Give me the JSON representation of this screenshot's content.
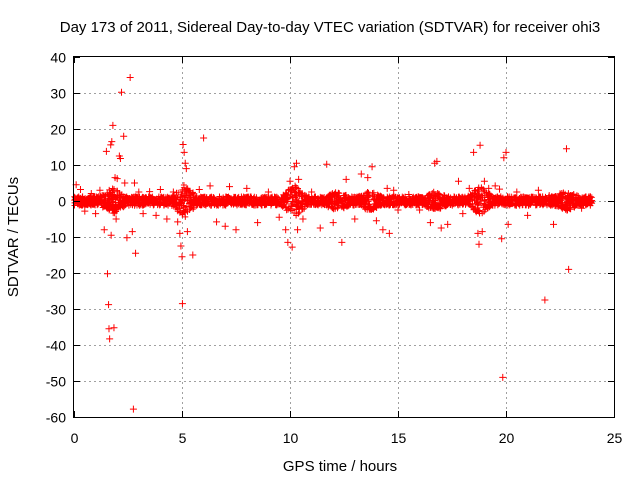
{
  "chart_data": {
    "type": "scatter",
    "title": "Day 173 of 2011, Sidereal Day-to-day VTEC variation (SDTVAR) for receiver ohi3",
    "xlabel": "GPS time / hours",
    "ylabel": "SDTVAR / TECUs",
    "xlim": [
      0,
      25
    ],
    "ylim": [
      -60,
      40
    ],
    "xticks": [
      0,
      5,
      10,
      15,
      20,
      25
    ],
    "yticks": [
      -60,
      -50,
      -40,
      -30,
      -20,
      -10,
      0,
      10,
      20,
      30,
      40
    ],
    "grid": true,
    "marker": "+",
    "color": "#ff0000",
    "series": [
      {
        "name": "SDTVAR",
        "points": [
          [
            0.1,
            4.5
          ],
          [
            0.3,
            3.2
          ],
          [
            0.5,
            -2.8
          ],
          [
            0.8,
            2.1
          ],
          [
            1.0,
            -3.5
          ],
          [
            1.2,
            3.0
          ],
          [
            1.4,
            -8.0
          ],
          [
            1.5,
            13.8
          ],
          [
            1.55,
            -20.2
          ],
          [
            1.6,
            -28.8
          ],
          [
            1.62,
            -35.5
          ],
          [
            1.65,
            -38.3
          ],
          [
            1.7,
            15.6
          ],
          [
            1.72,
            -9.5
          ],
          [
            1.75,
            16.5
          ],
          [
            1.8,
            21.0
          ],
          [
            1.85,
            -35.2
          ],
          [
            1.9,
            6.5
          ],
          [
            1.95,
            -5.0
          ],
          [
            2.0,
            6.2
          ],
          [
            2.1,
            12.5
          ],
          [
            2.15,
            11.8
          ],
          [
            2.2,
            30.2
          ],
          [
            2.3,
            18.0
          ],
          [
            2.35,
            5.0
          ],
          [
            2.45,
            -10.2
          ],
          [
            2.6,
            34.3
          ],
          [
            2.7,
            -8.5
          ],
          [
            2.75,
            -57.8
          ],
          [
            2.8,
            5.0
          ],
          [
            2.85,
            -14.5
          ],
          [
            3.0,
            2.5
          ],
          [
            3.2,
            -3.5
          ],
          [
            3.5,
            2.6
          ],
          [
            3.8,
            -4.0
          ],
          [
            4.0,
            3.2
          ],
          [
            4.3,
            -5.0
          ],
          [
            4.6,
            2.5
          ],
          [
            4.8,
            -5.8
          ],
          [
            4.9,
            -9.0
          ],
          [
            4.95,
            -12.5
          ],
          [
            5.0,
            -15.5
          ],
          [
            5.02,
            -28.5
          ],
          [
            5.05,
            15.7
          ],
          [
            5.1,
            13.5
          ],
          [
            5.15,
            10.5
          ],
          [
            5.2,
            9.0
          ],
          [
            5.25,
            -8.5
          ],
          [
            5.5,
            -15.0
          ],
          [
            5.8,
            3.2
          ],
          [
            6.0,
            17.5
          ],
          [
            6.3,
            4.2
          ],
          [
            6.6,
            -5.8
          ],
          [
            7.0,
            -7.0
          ],
          [
            7.2,
            4.0
          ],
          [
            7.5,
            -8.0
          ],
          [
            8.0,
            3.5
          ],
          [
            8.5,
            -6.0
          ],
          [
            9.0,
            2.5
          ],
          [
            9.5,
            -4.5
          ],
          [
            9.8,
            -8.0
          ],
          [
            9.9,
            -11.5
          ],
          [
            10.0,
            5.5
          ],
          [
            10.1,
            -12.8
          ],
          [
            10.2,
            9.5
          ],
          [
            10.3,
            10.5
          ],
          [
            10.35,
            -8.0
          ],
          [
            10.4,
            6.0
          ],
          [
            10.6,
            -5.0
          ],
          [
            11.0,
            2.5
          ],
          [
            11.4,
            -7.5
          ],
          [
            11.7,
            10.2
          ],
          [
            12.0,
            -6.0
          ],
          [
            12.4,
            -11.5
          ],
          [
            12.6,
            6.0
          ],
          [
            13.0,
            -5.0
          ],
          [
            13.3,
            7.5
          ],
          [
            13.6,
            6.5
          ],
          [
            13.8,
            9.5
          ],
          [
            14.0,
            -5.5
          ],
          [
            14.3,
            -8.0
          ],
          [
            14.5,
            3.5
          ],
          [
            14.6,
            -9.0
          ],
          [
            14.8,
            3.0
          ],
          [
            15.0,
            -2.5
          ],
          [
            15.5,
            1.8
          ],
          [
            16.0,
            -2.5
          ],
          [
            16.5,
            -6.0
          ],
          [
            16.7,
            10.5
          ],
          [
            16.8,
            11.0
          ],
          [
            17.0,
            -7.5
          ],
          [
            17.3,
            -6.5
          ],
          [
            17.8,
            5.5
          ],
          [
            18.0,
            -3.5
          ],
          [
            18.3,
            3.5
          ],
          [
            18.5,
            13.5
          ],
          [
            18.7,
            -9.0
          ],
          [
            18.75,
            -12.0
          ],
          [
            18.8,
            15.5
          ],
          [
            18.9,
            -8.5
          ],
          [
            19.0,
            5.5
          ],
          [
            19.2,
            3.5
          ],
          [
            19.5,
            4.2
          ],
          [
            19.7,
            3.3
          ],
          [
            19.8,
            -10.5
          ],
          [
            19.85,
            -49.0
          ],
          [
            19.9,
            12.0
          ],
          [
            20.0,
            13.5
          ],
          [
            20.1,
            -6.5
          ],
          [
            20.5,
            2.5
          ],
          [
            21.0,
            -4.0
          ],
          [
            21.5,
            3.0
          ],
          [
            21.8,
            -27.5
          ],
          [
            22.0,
            1.5
          ],
          [
            22.2,
            -6.5
          ],
          [
            22.5,
            2.0
          ],
          [
            22.8,
            14.5
          ],
          [
            22.9,
            -19.0
          ],
          [
            23.0,
            1.5
          ],
          [
            23.5,
            -2.0
          ],
          [
            23.9,
            1.2
          ]
        ]
      }
    ]
  }
}
